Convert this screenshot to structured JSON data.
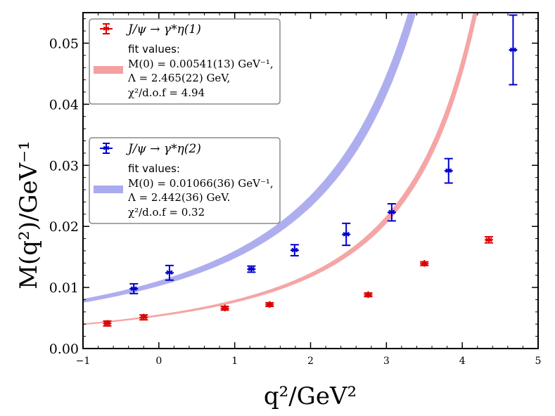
{
  "chart_data": {
    "type": "scatter",
    "xlabel": "q²/GeV²",
    "ylabel": "M(q²)/GeV⁻¹",
    "xlim": [
      -1,
      5
    ],
    "ylim": [
      0.0,
      0.055
    ],
    "xticks": [
      -1,
      0,
      1,
      2,
      3,
      4,
      5
    ],
    "yticks": [
      0.0,
      0.01,
      0.02,
      0.03,
      0.04,
      0.05
    ],
    "xtick_labels": [
      "−1",
      "0",
      "1",
      "2",
      "3",
      "4",
      "5"
    ],
    "ytick_labels": [
      "0.00",
      "0.01",
      "0.02",
      "0.03",
      "0.04",
      "0.05"
    ],
    "grid": false,
    "series": [
      {
        "name": "J/ψ → γ*η(1)",
        "color": "#dd0000",
        "band_color": "#f4a0a0",
        "x": [
          -0.68,
          -0.2,
          0.87,
          1.46,
          2.76,
          3.5,
          4.35
        ],
        "y": [
          0.0041,
          0.0051,
          0.0066,
          0.0072,
          0.0088,
          0.0139,
          0.0178
        ],
        "yerr": [
          0.0004,
          0.0004,
          0.0003,
          0.0003,
          0.0003,
          0.0003,
          0.0005
        ],
        "fit": {
          "M0": 0.00541,
          "Lambda": 2.465,
          "band_half_width": 0.03
        },
        "legend": {
          "label": "J/ψ → γ*η(1)",
          "fit_title": "fit values:",
          "line1": "M(0) = 0.00541(13) GeV⁻¹,",
          "line2": "Λ = 2.465(22) GeV,",
          "line3": "χ²/d.o.f = 4.94"
        }
      },
      {
        "name": "J/ψ → γ*η(2)",
        "color": "#0000cc",
        "band_color": "#aaaaee",
        "x": [
          -0.33,
          0.14,
          1.22,
          1.79,
          2.47,
          3.07,
          3.82,
          4.67
        ],
        "y": [
          0.0098,
          0.0124,
          0.013,
          0.0161,
          0.0187,
          0.0223,
          0.0291,
          0.0489
        ],
        "yerr": [
          0.0008,
          0.0012,
          0.0005,
          0.0009,
          0.0018,
          0.0014,
          0.002,
          0.0057
        ],
        "fit": {
          "M0": 0.01066,
          "Lambda": 2.442,
          "band_half_width": 0.04
        },
        "legend": {
          "label": "J/ψ → γ*η(2)",
          "fit_title": "fit values:",
          "line1": "M(0) = 0.01066(36) GeV⁻¹,",
          "line2": "Λ = 2.442(36) GeV.",
          "line3": "χ²/d.o.f = 0.32"
        }
      }
    ]
  }
}
